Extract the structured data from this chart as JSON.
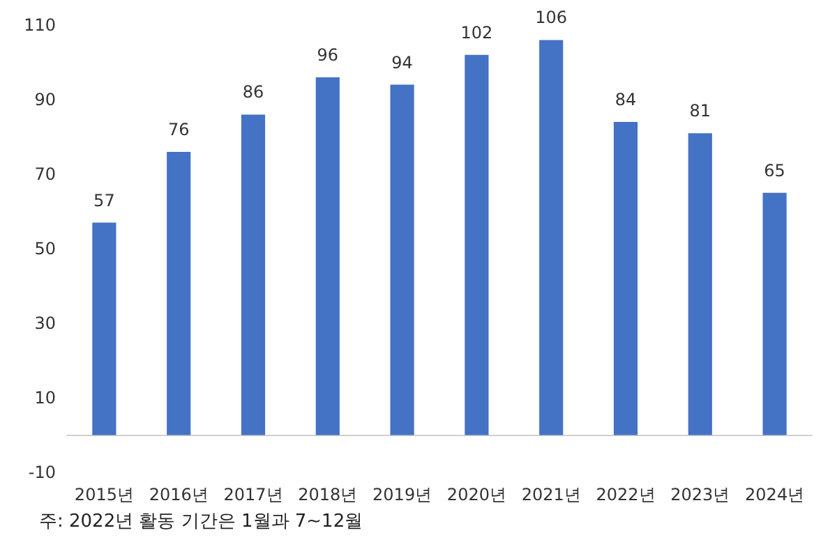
{
  "chart_data": {
    "type": "bar",
    "categories": [
      "2015년",
      "2016년",
      "2017년",
      "2018년",
      "2019년",
      "2020년",
      "2021년",
      "2022년",
      "2023년",
      "2024년"
    ],
    "values": [
      57,
      76,
      86,
      96,
      94,
      102,
      106,
      84,
      81,
      65
    ],
    "color": "#4472c4",
    "data_labels": true,
    "grid": false,
    "ylim": [
      -10,
      110
    ],
    "yticks": [
      -10,
      10,
      30,
      50,
      70,
      90,
      110
    ],
    "annotations": [
      "주: 2022년 활동 기간은 1월과 7~12월"
    ]
  }
}
